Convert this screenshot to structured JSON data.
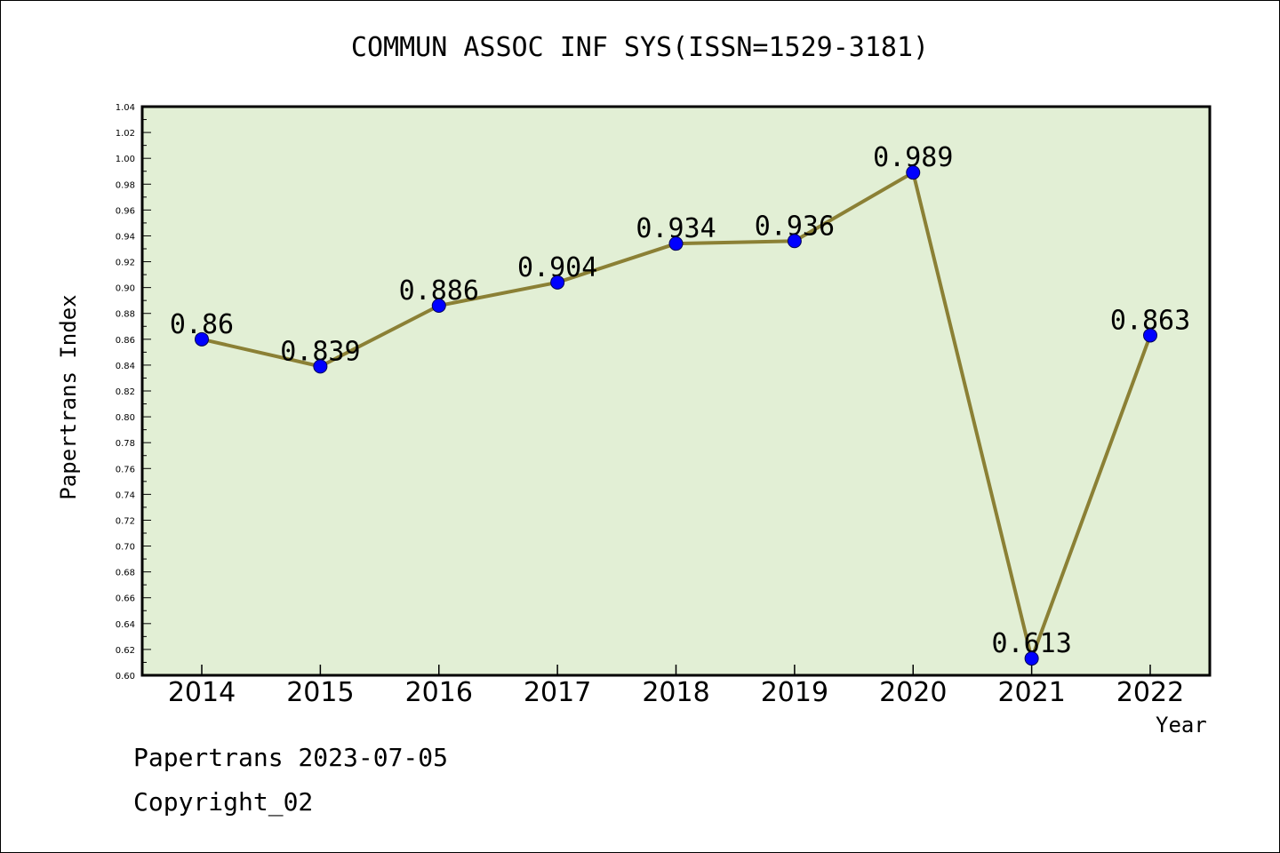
{
  "chart_data": {
    "type": "line",
    "title": "COMMUN ASSOC INF SYS(ISSN=1529-3181)",
    "xlabel": "Year",
    "ylabel": "Papertrans Index",
    "categories": [
      "2014",
      "2015",
      "2016",
      "2017",
      "2018",
      "2019",
      "2020",
      "2021",
      "2022"
    ],
    "values": [
      0.86,
      0.839,
      0.886,
      0.904,
      0.934,
      0.936,
      0.989,
      0.613,
      0.863
    ],
    "data_labels": [
      "0.86",
      "0.839",
      "0.886",
      "0.904",
      "0.934",
      "0.936",
      "0.989",
      "0.613",
      "0.863"
    ],
    "ylim": [
      0.6,
      1.04
    ],
    "yticks": [
      "0.60",
      "0.62",
      "0.64",
      "0.66",
      "0.68",
      "0.70",
      "0.72",
      "0.74",
      "0.76",
      "0.78",
      "0.80",
      "0.82",
      "0.84",
      "0.86",
      "0.88",
      "0.90",
      "0.92",
      "0.94",
      "0.96",
      "0.98",
      "1.00",
      "1.02",
      "1.04"
    ],
    "grid": false,
    "plot_background": "#e2efd5",
    "line_color": "#8b8035",
    "marker_color": "#0000ff"
  },
  "footer": {
    "line1": "Papertrans 2023-07-05",
    "line2": "Copyright_02"
  }
}
